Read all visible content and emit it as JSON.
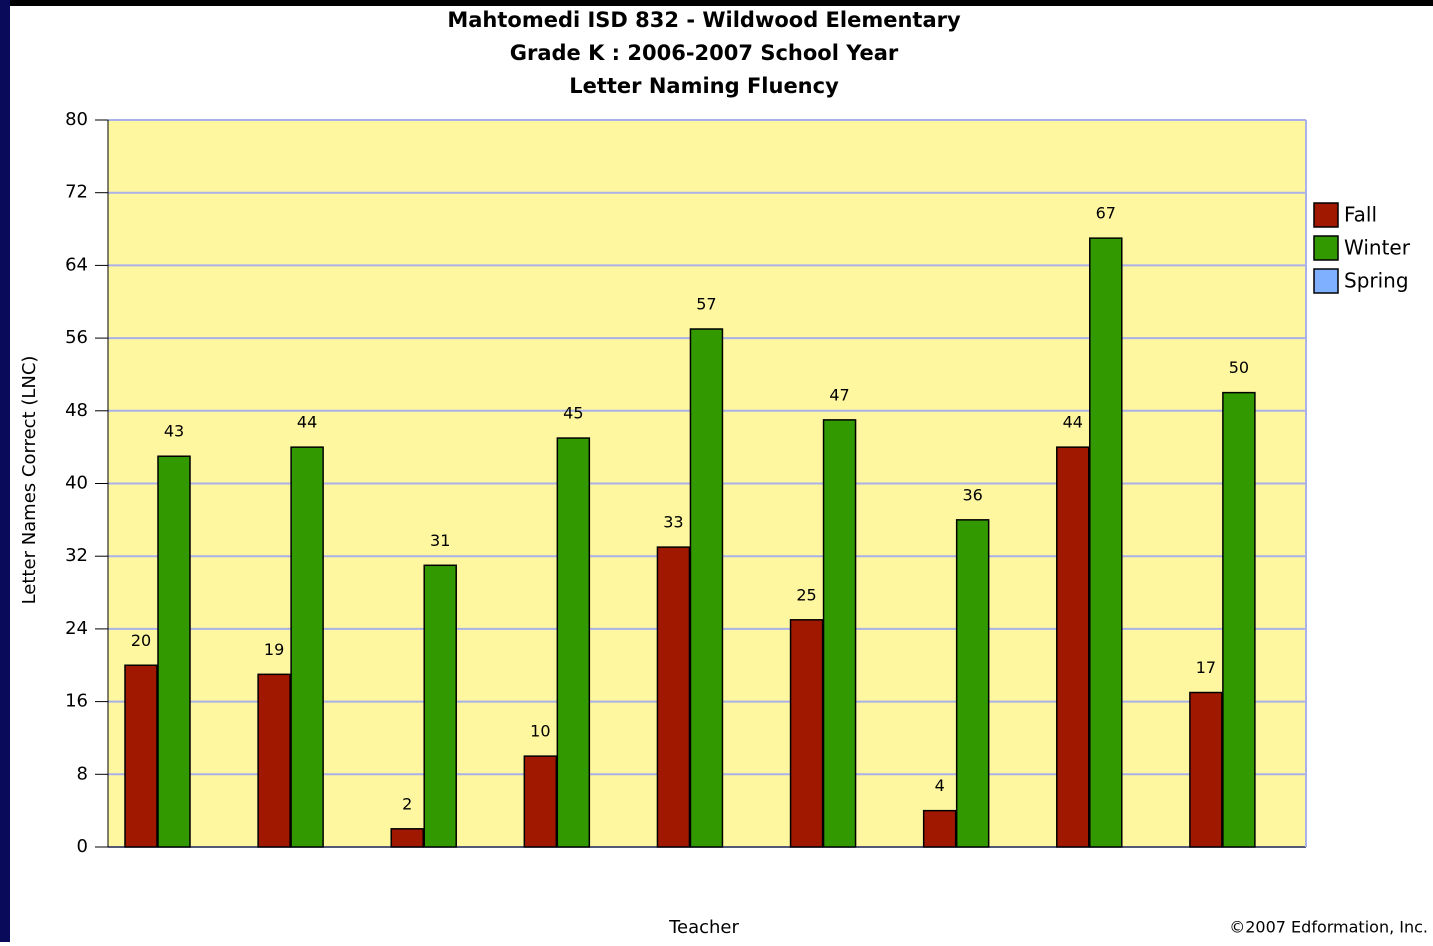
{
  "chart_data": {
    "type": "bar",
    "title": [
      "Mahtomedi ISD 832 - Wildwood Elementary",
      "Grade K : 2006-2007 School Year",
      "Letter Naming Fluency"
    ],
    "x_label": "Teacher",
    "y_label": "Letter Names Correct (LNC)",
    "footer": "©2007 Edformation, Inc.",
    "categories": [
      null,
      null,
      null,
      null,
      null,
      null,
      null,
      null,
      null
    ],
    "series": [
      {
        "name": "Fall",
        "color": "#a01800",
        "values": [
          20,
          19,
          2,
          10,
          33,
          25,
          4,
          44,
          17
        ]
      },
      {
        "name": "Winter",
        "color": "#339900",
        "values": [
          43,
          44,
          31,
          45,
          57,
          47,
          36,
          67,
          50
        ]
      },
      {
        "name": "Spring",
        "color": "#7fb0ff",
        "values": [
          null,
          null,
          null,
          null,
          null,
          null,
          null,
          null,
          null
        ]
      }
    ],
    "ylim": [
      0,
      80
    ],
    "yticks": [
      0,
      8,
      16,
      24,
      32,
      40,
      48,
      56,
      64,
      72,
      80
    ],
    "grid": true,
    "legend": "right",
    "data_labels": true
  }
}
